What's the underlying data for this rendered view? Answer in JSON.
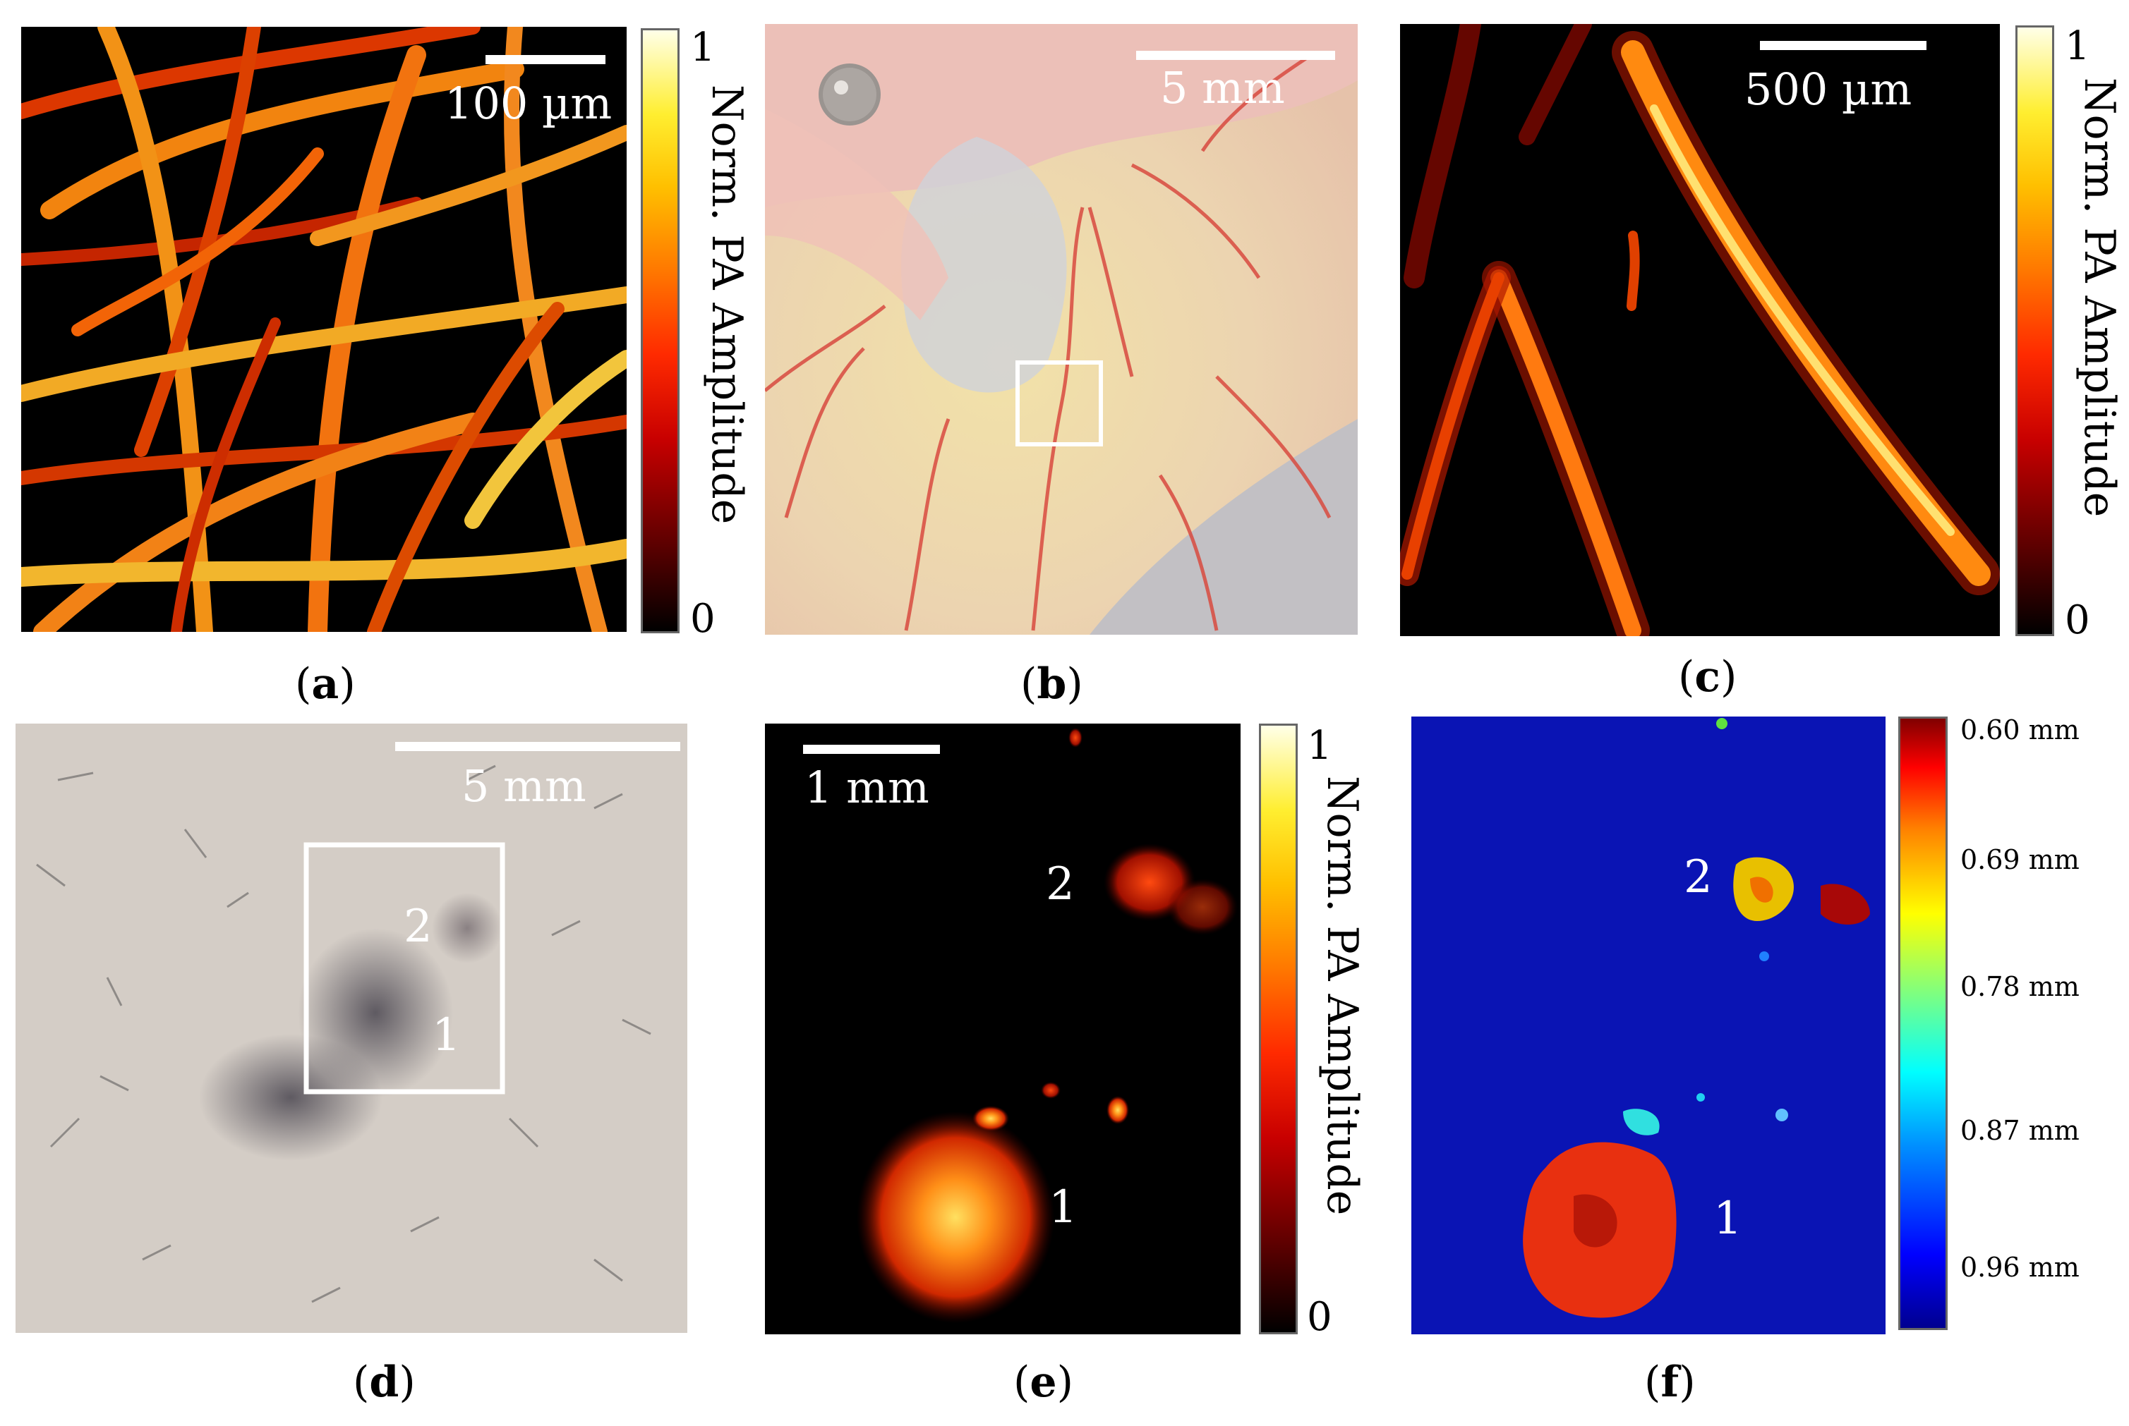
{
  "panels": {
    "a": {
      "caption_open": "(",
      "caption_letter": "a",
      "caption_close": ")",
      "scalebar_label": "100 µm",
      "colorbar": {
        "max": "1",
        "min": "0",
        "title": "Norm. PA Amplitude"
      }
    },
    "b": {
      "caption_open": "(",
      "caption_letter": "b",
      "caption_close": ")",
      "scalebar_label": "5 mm"
    },
    "c": {
      "caption_open": "(",
      "caption_letter": "c",
      "caption_close": ")",
      "scalebar_label": "500 µm",
      "colorbar": {
        "max": "1",
        "min": "0",
        "title": "Norm. PA Amplitude"
      }
    },
    "d": {
      "caption_open": "(",
      "caption_letter": "d",
      "caption_close": ")",
      "scalebar_label": "5 mm",
      "roi_labels": [
        "2",
        "1"
      ]
    },
    "e": {
      "caption_open": "(",
      "caption_letter": "e",
      "caption_close": ")",
      "scalebar_label": "1 mm",
      "roi_labels": [
        "2",
        "1"
      ],
      "colorbar": {
        "max": "1",
        "min": "0",
        "title": "Norm. PA Amplitude"
      }
    },
    "f": {
      "caption_open": "(",
      "caption_letter": "f",
      "caption_close": ")",
      "roi_labels": [
        "2",
        "1"
      ],
      "colorbar": {
        "ticks": [
          "0.60 mm",
          "0.69 mm",
          "0.78 mm",
          "0.87 mm",
          "0.96 mm"
        ]
      }
    }
  },
  "colors": {
    "hot_map_low": "#000000",
    "hot_map_high": "#ffffe8",
    "jet_background": "#0a14a0",
    "tissue_background": "#e8d0b0",
    "phantom_background": "#d2cbc4"
  }
}
